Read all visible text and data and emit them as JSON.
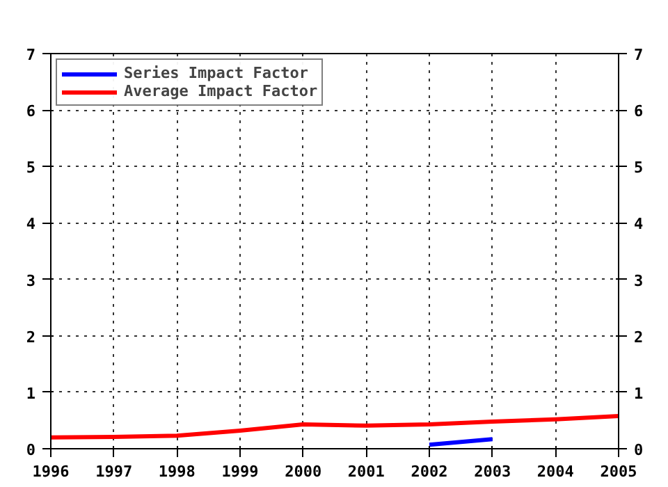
{
  "chart_data": {
    "type": "line",
    "x": [
      1996,
      1997,
      1998,
      1999,
      2000,
      2001,
      2002,
      2003,
      2004,
      2005
    ],
    "series": [
      {
        "name": "Series Impact Factor",
        "color": "#0000ff",
        "x": [
          2002,
          2003
        ],
        "values": [
          0.07,
          0.17
        ]
      },
      {
        "name": "Average Impact Factor",
        "color": "#ff0000",
        "values": [
          0.2,
          0.21,
          0.23,
          0.32,
          0.43,
          0.41,
          0.43,
          0.48,
          0.52,
          0.58
        ]
      }
    ],
    "xlim": [
      1996,
      2005
    ],
    "xticks": [
      1996,
      1997,
      1998,
      1999,
      2000,
      2001,
      2002,
      2003,
      2004,
      2005
    ],
    "ylim": [
      0,
      7
    ],
    "yticks": [
      0,
      1,
      2,
      3,
      4,
      5,
      6,
      7
    ],
    "y2lim": [
      0,
      7
    ],
    "y2ticks": [
      0,
      1,
      2,
      3,
      4,
      5,
      6,
      7
    ],
    "grid": true,
    "legend": "top left",
    "line_style": "solid"
  }
}
